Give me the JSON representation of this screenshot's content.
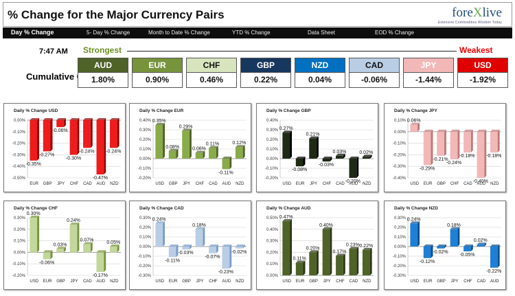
{
  "header": {
    "title": "% Change for the Major Currency Pairs",
    "logo_main": "fore",
    "logo_x": "X",
    "logo_end": "live",
    "logo_tag": "Extensive Commodities Wisdom Today"
  },
  "nav": [
    "Day % Change",
    "5- Day % Change",
    "Month to Date % Change",
    "YTD % Change",
    "Data Sheet",
    "EOD % Change"
  ],
  "time": "7:47 AM",
  "cumulative_label": "Cumulative Changes",
  "strongest": "Strongest",
  "weakest": "Weakest",
  "currencies": [
    {
      "code": "AUD",
      "value": "1.80%",
      "color": "#4f6228",
      "text": "#ffffff"
    },
    {
      "code": "EUR",
      "value": "0.90%",
      "color": "#77933c",
      "text": "#ffffff"
    },
    {
      "code": "CHF",
      "value": "0.46%",
      "color": "#d7e4bd",
      "text": "#111111"
    },
    {
      "code": "GBP",
      "value": "0.22%",
      "color": "#17375e",
      "text": "#ffffff"
    },
    {
      "code": "NZD",
      "value": "0.04%",
      "color": "#0070c0",
      "text": "#ffffff"
    },
    {
      "code": "CAD",
      "value": "-0.06%",
      "color": "#b9cde5",
      "text": "#111111"
    },
    {
      "code": "JPY",
      "value": "-1.44%",
      "color": "#f2b8b8",
      "text": "#ffffff"
    },
    {
      "code": "USD",
      "value": "-1.92%",
      "color": "#e00000",
      "text": "#ffffff"
    }
  ],
  "chart_data": [
    {
      "type": "bar",
      "title": "Daily % Change USD",
      "categories": [
        "EUR",
        "GBP",
        "JPY",
        "CHF",
        "CAD",
        "AUD",
        "NZD"
      ],
      "values": [
        -0.35,
        -0.27,
        -0.06,
        -0.3,
        -0.24,
        -0.47,
        -0.24
      ],
      "ylim": [
        -0.5,
        0.0
      ],
      "yticks": [
        "0.00%",
        "-0.10%",
        "-0.20%",
        "-0.30%",
        "-0.40%",
        "-0.50%"
      ],
      "color": "#ee1c1c",
      "side": "#990000"
    },
    {
      "type": "bar",
      "title": "Daily % Change EUR",
      "categories": [
        "USD",
        "GBP",
        "JPY",
        "CHF",
        "CAD",
        "AUD",
        "NZD"
      ],
      "values": [
        0.35,
        0.08,
        0.29,
        0.06,
        0.11,
        -0.11,
        0.12
      ],
      "ylim": [
        -0.2,
        0.4
      ],
      "yticks": [
        "0.40%",
        "0.30%",
        "0.20%",
        "0.10%",
        "0.00%",
        "-0.10%",
        "-0.20%"
      ],
      "color": "#8aab4a",
      "side": "#4f6228"
    },
    {
      "type": "bar",
      "title": "Daily % Change GBP",
      "categories": [
        "USD",
        "EUR",
        "JPY",
        "CHF",
        "CAD",
        "AUD",
        "NZD"
      ],
      "values": [
        0.27,
        -0.08,
        0.21,
        -0.03,
        0.03,
        -0.2,
        0.02
      ],
      "ylim": [
        -0.2,
        0.4
      ],
      "yticks": [
        "0.40%",
        "0.30%",
        "0.20%",
        "0.10%",
        "0.00%",
        "-0.10%",
        "-0.20%"
      ],
      "color": "#1e2a14",
      "side": "#000000"
    },
    {
      "type": "bar",
      "title": "Daily % Change JPY",
      "categories": [
        "USD",
        "EUR",
        "GBP",
        "CHF",
        "CAD",
        "AUD",
        "NZD"
      ],
      "values": [
        0.06,
        -0.29,
        -0.21,
        -0.24,
        -0.18,
        -0.4,
        -0.18
      ],
      "ylim": [
        -0.4,
        0.1
      ],
      "yticks": [
        "0.10%",
        "0.00%",
        "-0.10%",
        "-0.20%",
        "-0.30%",
        "-0.40%"
      ],
      "color": "#f2b8b8",
      "side": "#c07878"
    },
    {
      "type": "bar",
      "title": "Daily % Change CHF",
      "categories": [
        "USD",
        "EUR",
        "GBP",
        "JPY",
        "CAD",
        "AUD",
        "NZD"
      ],
      "values": [
        0.3,
        -0.06,
        0.03,
        0.24,
        0.07,
        -0.17,
        0.05
      ],
      "ylim": [
        -0.2,
        0.3
      ],
      "yticks": [
        "0.30%",
        "0.20%",
        "0.10%",
        "0.00%",
        "-0.10%",
        "-0.20%"
      ],
      "color": "#c3d69b",
      "side": "#77933c"
    },
    {
      "type": "bar",
      "title": "Daily % Change CAD",
      "categories": [
        "USD",
        "EUR",
        "GBP",
        "JPY",
        "CHF",
        "AUD",
        "NZD"
      ],
      "values": [
        0.24,
        -0.11,
        -0.03,
        0.18,
        -0.07,
        -0.23,
        -0.02
      ],
      "ylim": [
        -0.3,
        0.3
      ],
      "yticks": [
        "0.30%",
        "0.20%",
        "0.10%",
        "0.00%",
        "-0.10%",
        "-0.20%",
        "-0.30%"
      ],
      "color": "#b9cde5",
      "side": "#7a9cc8"
    },
    {
      "type": "bar",
      "title": "Daily % Change AUD",
      "categories": [
        "USD",
        "EUR",
        "GBP",
        "JPY",
        "CHF",
        "CAD",
        "NZD"
      ],
      "values": [
        0.47,
        0.11,
        0.2,
        0.4,
        0.17,
        0.23,
        0.22
      ],
      "ylim": [
        0.0,
        0.5
      ],
      "yticks": [
        "0.50%",
        "0.40%",
        "0.30%",
        "0.20%",
        "0.10%",
        "0.00%"
      ],
      "color": "#4f6228",
      "side": "#2a3615"
    },
    {
      "type": "bar",
      "title": "Daily % Change NZD",
      "categories": [
        "USD",
        "EUR",
        "GBP",
        "JPY",
        "CHF",
        "CAD",
        "AUD"
      ],
      "values": [
        0.24,
        -0.12,
        -0.02,
        0.18,
        -0.05,
        0.02,
        -0.22
      ],
      "ylim": [
        -0.3,
        0.3
      ],
      "yticks": [
        "0.30%",
        "0.20%",
        "0.10%",
        "0.00%",
        "-0.10%",
        "-0.20%",
        "-0.30%"
      ],
      "color": "#1f7fd6",
      "side": "#0b4f8f"
    }
  ]
}
